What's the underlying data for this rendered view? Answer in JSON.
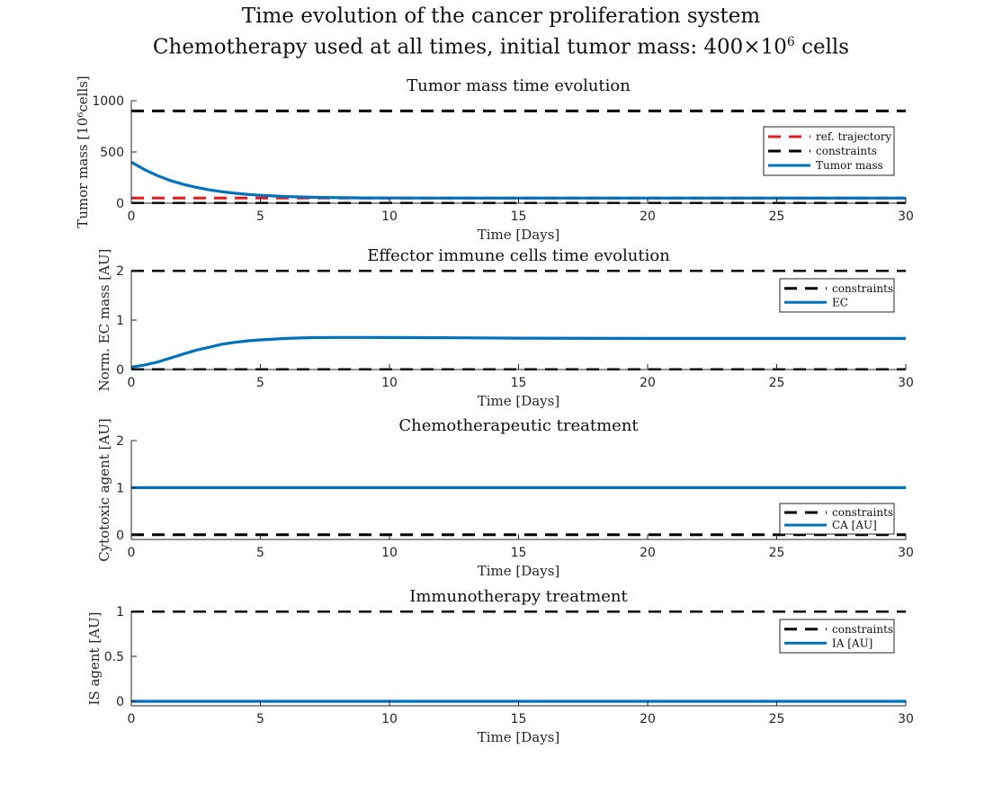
{
  "figure": {
    "title_line1": "Time evolution of the cancer proliferation system",
    "title_line2_prefix": "Chemotherapy used at all times, initial tumor mass: 400×10",
    "title_line2_sup": "6",
    "title_line2_suffix": " cells"
  },
  "colors": {
    "tumor": "#0072BD",
    "reference": "#e41a1c",
    "constraint": "#000000",
    "axis": "#262626",
    "legend_border": "#262626"
  },
  "chart_data": [
    {
      "type": "line",
      "title": "Tumor mass time evolution",
      "xlabel": "Time [Days]",
      "ylabel": "Tumor mass [10⁶cells]",
      "xlim": [
        0,
        30
      ],
      "ylim": [
        0,
        1000
      ],
      "xticks": [
        0,
        5,
        10,
        15,
        20,
        25,
        30
      ],
      "yticks": [
        0,
        500,
        1000
      ],
      "legend_position": "right",
      "series": [
        {
          "name": "ref. trajectory",
          "style": "dashed",
          "color": "#e41a1c",
          "x": [
            0,
            30
          ],
          "y": [
            50,
            50
          ]
        },
        {
          "name": "constraints",
          "style": "dashed",
          "color": "#000000",
          "x": [
            0,
            30
          ],
          "y": [
            900,
            900
          ]
        },
        {
          "name": "",
          "style": "dashed",
          "color": "#000000",
          "x": [
            0,
            30
          ],
          "y": [
            0,
            0
          ]
        },
        {
          "name": "Tumor mass",
          "style": "solid",
          "color": "#0072BD",
          "x": [
            0,
            0.5,
            1,
            1.5,
            2,
            2.5,
            3,
            3.5,
            4,
            4.5,
            5,
            6,
            7,
            8,
            9,
            10,
            12,
            15,
            20,
            25,
            30
          ],
          "y": [
            400,
            330,
            270,
            222,
            185,
            155,
            131,
            112,
            97,
            86,
            77,
            65,
            58,
            54,
            52,
            51,
            50,
            50,
            50,
            50,
            50
          ]
        }
      ]
    },
    {
      "type": "line",
      "title": "Effector immune cells time evolution",
      "xlabel": "Time [Days]",
      "ylabel": "Norm. EC mass [AU]",
      "xlim": [
        0,
        30
      ],
      "ylim": [
        0,
        2
      ],
      "xticks": [
        0,
        5,
        10,
        15,
        20,
        25,
        30
      ],
      "yticks": [
        0,
        1,
        2
      ],
      "legend_position": "top-right",
      "series": [
        {
          "name": "constraints",
          "style": "dashed",
          "color": "#000000",
          "x": [
            0,
            30
          ],
          "y": [
            2,
            2
          ]
        },
        {
          "name": "",
          "style": "dashed",
          "color": "#000000",
          "x": [
            0,
            30
          ],
          "y": [
            0,
            0
          ]
        },
        {
          "name": "EC",
          "style": "solid",
          "color": "#0072BD",
          "x": [
            0,
            0.5,
            1,
            1.5,
            2,
            2.5,
            3,
            3.5,
            4,
            4.5,
            5,
            6,
            7,
            8,
            9,
            10,
            12,
            15,
            20,
            25,
            30
          ],
          "y": [
            0.05,
            0.09,
            0.15,
            0.23,
            0.31,
            0.39,
            0.45,
            0.51,
            0.55,
            0.58,
            0.6,
            0.63,
            0.645,
            0.65,
            0.65,
            0.648,
            0.643,
            0.635,
            0.63,
            0.63,
            0.63
          ]
        }
      ]
    },
    {
      "type": "line",
      "title": "Chemotherapeutic treatment",
      "xlabel": "Time [Days]",
      "ylabel": "Cytotoxic agent [AU]",
      "xlim": [
        0,
        30
      ],
      "ylim": [
        -0.1,
        2
      ],
      "xticks": [
        0,
        5,
        10,
        15,
        20,
        25,
        30
      ],
      "yticks": [
        0,
        1,
        2
      ],
      "legend_position": "bottom-right",
      "series": [
        {
          "name": "constraints",
          "style": "dashed",
          "color": "#000000",
          "x": [
            0,
            30
          ],
          "y": [
            0,
            0
          ]
        },
        {
          "name": "CA [AU]",
          "style": "solid",
          "color": "#0072BD",
          "x": [
            0,
            30
          ],
          "y": [
            1,
            1
          ]
        }
      ]
    },
    {
      "type": "line",
      "title": "Immunotherapy treatment",
      "xlabel": "Time [Days]",
      "ylabel": "IS agent [AU]",
      "xlim": [
        0,
        30
      ],
      "ylim": [
        -0.05,
        1
      ],
      "xticks": [
        0,
        5,
        10,
        15,
        20,
        25,
        30
      ],
      "yticks": [
        0,
        0.5,
        1
      ],
      "legend_position": "top-right",
      "series": [
        {
          "name": "constraints",
          "style": "dashed",
          "color": "#000000",
          "x": [
            0,
            30
          ],
          "y": [
            1,
            1
          ]
        },
        {
          "name": "IA [AU]",
          "style": "solid",
          "color": "#0072BD",
          "x": [
            0,
            30
          ],
          "y": [
            0,
            0
          ]
        }
      ]
    }
  ]
}
